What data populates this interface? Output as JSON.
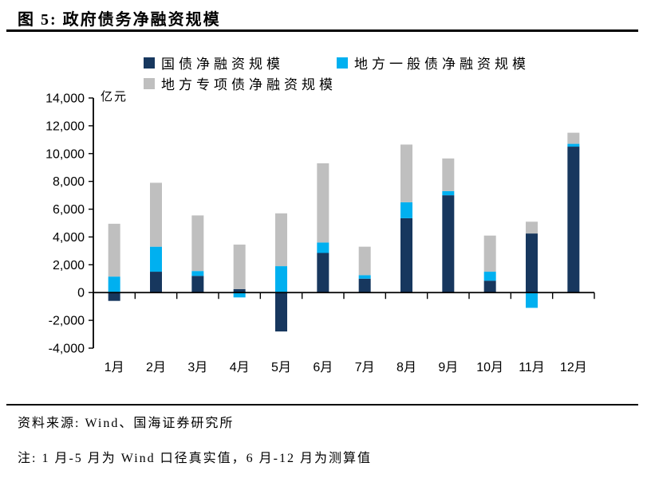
{
  "title": "图 5: 政府债务净融资规模",
  "source": "资料来源: Wind、国海证券研究所",
  "note": "注: 1 月-5 月为 Wind 口径真实值，6 月-12 月为测算值",
  "colors": {
    "treasury": "#17375E",
    "local_general": "#00B0F0",
    "local_special": "#BFBFBF",
    "axis": "#000000"
  },
  "chart_data": {
    "type": "bar",
    "stacked": true,
    "title": "政府债务净融资规模",
    "ylabel": "亿元",
    "xlabel": "",
    "ylim": [
      -4000,
      14000
    ],
    "ytick_step": 2000,
    "grid": false,
    "legend_position": "top",
    "categories": [
      "1月",
      "2月",
      "3月",
      "4月",
      "5月",
      "6月",
      "7月",
      "8月",
      "9月",
      "10月",
      "11月",
      "12月"
    ],
    "series": [
      {
        "name": "国债净融资规模",
        "color": "#17375E",
        "values": [
          -600,
          1500,
          1200,
          250,
          -2800,
          2850,
          1000,
          5350,
          7000,
          850,
          4250,
          10500
        ]
      },
      {
        "name": "地方一般债净融资规模",
        "color": "#00B0F0",
        "values": [
          1150,
          1800,
          350,
          -350,
          1900,
          750,
          250,
          1150,
          300,
          650,
          -1100,
          200
        ]
      },
      {
        "name": "地方专项债净融资规模",
        "color": "#BFBFBF",
        "values": [
          3800,
          4600,
          4000,
          3200,
          3800,
          5700,
          2050,
          4150,
          2350,
          2600,
          850,
          800
        ]
      }
    ]
  }
}
